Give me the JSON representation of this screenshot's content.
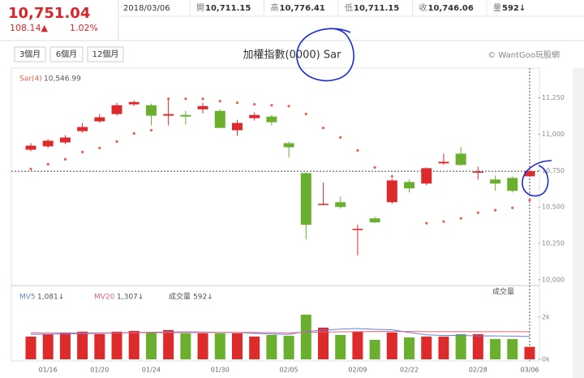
{
  "header": {
    "price": "10,751.04",
    "change": "108.14▲",
    "change_pct": "1.02%",
    "date": "2018/03/06",
    "stats": [
      {
        "label": "開",
        "value": "10,711.15"
      },
      {
        "label": "高",
        "value": "10,776.41"
      },
      {
        "label": "低",
        "value": "10,711.15"
      },
      {
        "label": "收",
        "value": "10,746.06"
      },
      {
        "label": "量",
        "value": "592↓"
      }
    ]
  },
  "toolbar": {
    "buttons": [
      "3個月",
      "6個月",
      "12個月"
    ]
  },
  "chart_data": {
    "type": "candlestick",
    "title": "加權指數(0000) Sar",
    "source": "© WantGoo玩股網",
    "categories": [
      null,
      "01/16",
      null,
      null,
      "01/20",
      null,
      null,
      "01/24",
      null,
      null,
      null,
      "01/30",
      null,
      null,
      null,
      "02/05",
      null,
      null,
      null,
      "02/09",
      null,
      null,
      "02/22",
      null,
      null,
      null,
      "02/28",
      null,
      null,
      "03/06"
    ],
    "open": [
      10894,
      10917,
      10944,
      11022,
      11089,
      11139,
      11206,
      11200,
      11128,
      11133,
      11172,
      11161,
      11028,
      11111,
      11122,
      10939,
      10733,
      10517,
      10533,
      10344,
      10422,
      10533,
      10672,
      10661,
      10800,
      10867,
      10739,
      10689,
      10700,
      10711.15
    ],
    "high": [
      10939,
      10967,
      10994,
      11078,
      11139,
      11217,
      11233,
      11211,
      11239,
      11161,
      11217,
      11172,
      11100,
      11150,
      11133,
      10950,
      10739,
      10667,
      10572,
      10378,
      10433,
      10694,
      10689,
      10772,
      10867,
      10911,
      10778,
      10717,
      10711,
      10776.41
    ],
    "low": [
      10883,
      10906,
      10933,
      11011,
      11078,
      11128,
      11194,
      11061,
      11061,
      11067,
      11144,
      11044,
      10989,
      11094,
      11061,
      10839,
      10278,
      10511,
      10489,
      10167,
      10389,
      10522,
      10600,
      10650,
      10789,
      10783,
      10689,
      10611,
      10600,
      10711.15
    ],
    "close": [
      10922,
      10956,
      10978,
      11050,
      11117,
      11200,
      11222,
      11128,
      11139,
      11122,
      11194,
      11044,
      11078,
      11133,
      11083,
      10911,
      10378,
      10522,
      10500,
      10350,
      10394,
      10683,
      10628,
      10767,
      10811,
      10789,
      10744,
      10661,
      10611,
      10746.06
    ],
    "up_color": "#dd2a2a",
    "down_color": "#6aaf2e",
    "ylim": [
      9960,
      11455
    ],
    "yticks": [
      {
        "value": 10000,
        "label": "10,000"
      },
      {
        "value": 10250,
        "label": "10,250"
      },
      {
        "value": 10500,
        "label": "10,500"
      },
      {
        "value": 10750,
        "label": "10,750"
      },
      {
        "value": 11000,
        "label": "11,000"
      },
      {
        "value": 11250,
        "label": "11,250"
      }
    ],
    "sar": {
      "name": "Sar(4)",
      "color": "#e8604a",
      "last_label": "10,546.99",
      "values": [
        10761,
        10794,
        10828,
        10878,
        10906,
        10950,
        11006,
        11028,
        11244,
        11244,
        11244,
        11228,
        11217,
        11206,
        11200,
        11194,
        11139,
        11044,
        10978,
        10889,
        10772,
        10711,
        null,
        10389,
        10400,
        10422,
        10461,
        10478,
        10494,
        10546.99
      ]
    },
    "volume": {
      "name": "成交量",
      "last_label": "592↓",
      "ylim": [
        0,
        3300
      ],
      "yticks": [
        {
          "value": 0,
          "label": "0k"
        },
        {
          "value": 2000,
          "label": "2k"
        }
      ],
      "values": [
        1077,
        1192,
        1269,
        1308,
        1192,
        1308,
        1346,
        1269,
        1385,
        1231,
        1231,
        1231,
        1231,
        1077,
        1154,
        1115,
        2115,
        1500,
        1154,
        1308,
        923,
        1269,
        1038,
        1077,
        1077,
        1192,
        1192,
        962,
        962,
        592
      ]
    },
    "mv5": {
      "name": "MV5",
      "color": "#6b7fe0",
      "last_label": "1,081↓",
      "values": [
        1180,
        1190,
        1200,
        1220,
        1230,
        1250,
        1270,
        1280,
        1290,
        1300,
        1290,
        1270,
        1270,
        1230,
        1200,
        1180,
        1320,
        1380,
        1430,
        1460,
        1420,
        1400,
        1270,
        1160,
        1130,
        1130,
        1110,
        1110,
        1100,
        1081
      ]
    },
    "mv20": {
      "name": "MV20",
      "color": "#e8607a",
      "last_label": "1,307↓",
      "values": [
        1250,
        1250,
        1250,
        1250,
        1250,
        1250,
        1260,
        1260,
        1260,
        1270,
        1270,
        1270,
        1270,
        1270,
        1260,
        1250,
        1280,
        1290,
        1300,
        1310,
        1320,
        1320,
        1320,
        1310,
        1310,
        1310,
        1310,
        1310,
        1310,
        1307
      ]
    }
  }
}
